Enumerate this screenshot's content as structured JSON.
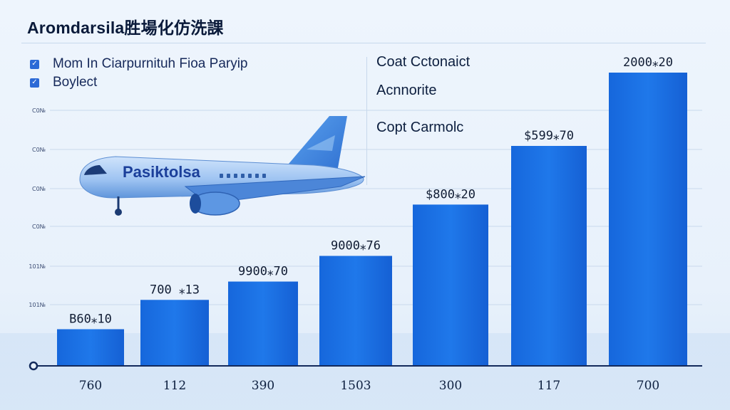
{
  "title": "Aromdarsila胜場化仿洗課",
  "legend": [
    {
      "label": "Mom In Ciarpurnituh Fioa Paryip",
      "marker": "✓"
    },
    {
      "label": "Boylect",
      "marker": "✓"
    }
  ],
  "notes": [
    "Coat Cctonaict",
    "Acnnorite",
    "Copt Carmolc"
  ],
  "airplane": {
    "livery_text": "Pasiktolsa"
  },
  "colors": {
    "bar": "#1f74e6",
    "bar_dark": "#1259c6",
    "accent": "#2c6ad6"
  },
  "chart_data": {
    "type": "bar",
    "title": "Aromdarsila胜場化仿洗課",
    "categories": [
      "760",
      "112",
      "390",
      "1503",
      "300",
      "117",
      "700"
    ],
    "values": [
      10,
      18,
      23,
      30,
      44,
      60,
      80
    ],
    "data_labels": [
      "B60⁎10",
      "700 ⁎13",
      "9900⁎70",
      "9000⁎76",
      "$800⁎20",
      "$599⁎70",
      "2000⁎20"
    ],
    "yticks": [
      "C0№",
      "C0№",
      "C0№",
      "C0№",
      "101№",
      "101№"
    ],
    "ylim": [
      0,
      80
    ],
    "grid": true,
    "legend_position": "top-left"
  }
}
